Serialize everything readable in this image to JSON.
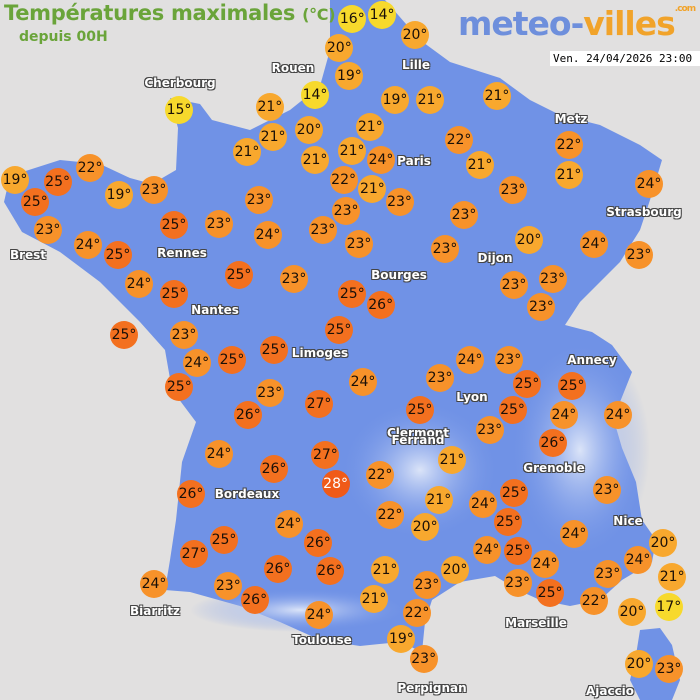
{
  "header": {
    "title": "Températures maximales",
    "unit": "(°C)",
    "subtitle": "depuis 00H"
  },
  "logo": {
    "part1": "meteo-",
    "part2": "villes",
    "tld": ".com"
  },
  "timestamp": "Ven. 24/04/2026 23:00",
  "colors": {
    "sea": "#e1e0e0",
    "land": "#7092e6",
    "relief": "#c9d6f5",
    "t_cold": "#f7d92c",
    "t_mild": "#f8a82e",
    "t_warm": "#f7922a",
    "t_hot": "#f3701f",
    "t_max": "#f05a18"
  },
  "cities": [
    "Cherbourg",
    "Rouen",
    "Lille",
    "Paris",
    "Metz",
    "Strasbourg",
    "Brest",
    "Rennes",
    "Nantes",
    "Bourges",
    "Dijon",
    "Limoges",
    "Lyon",
    "Annecy",
    "Clermont",
    "Ferrand",
    "Bordeaux",
    "Grenoble",
    "Toulouse",
    "Biarritz",
    "Marseille",
    "Nice",
    "Perpignan",
    "Ajaccio"
  ],
  "temperatures": [
    16,
    14,
    20,
    20,
    19,
    14,
    15,
    21,
    21,
    20,
    21,
    21,
    21,
    21,
    19,
    21,
    21,
    22,
    24,
    21,
    22,
    21,
    23,
    23,
    22,
    21,
    24,
    23,
    23,
    22,
    19,
    25,
    25,
    19,
    23,
    23,
    24,
    25,
    25,
    23,
    23,
    24,
    23,
    23,
    23,
    20,
    24,
    23,
    23,
    23,
    23,
    24,
    25,
    25,
    23,
    25,
    26,
    25,
    23,
    25,
    24,
    25,
    25,
    25,
    23,
    26,
    27,
    24,
    27,
    28,
    26,
    26,
    24,
    26,
    25,
    27,
    26,
    26,
    24,
    23,
    26,
    24,
    24,
    23,
    23,
    24,
    25,
    25,
    25,
    24,
    24,
    25,
    23,
    26,
    21,
    22,
    23,
    21,
    22,
    20,
    24,
    25,
    25,
    25,
    24,
    24,
    20,
    24,
    24,
    23,
    25,
    23,
    21,
    20,
    23,
    21,
    22,
    20,
    21,
    17,
    22,
    19,
    23,
    20,
    23
  ]
}
